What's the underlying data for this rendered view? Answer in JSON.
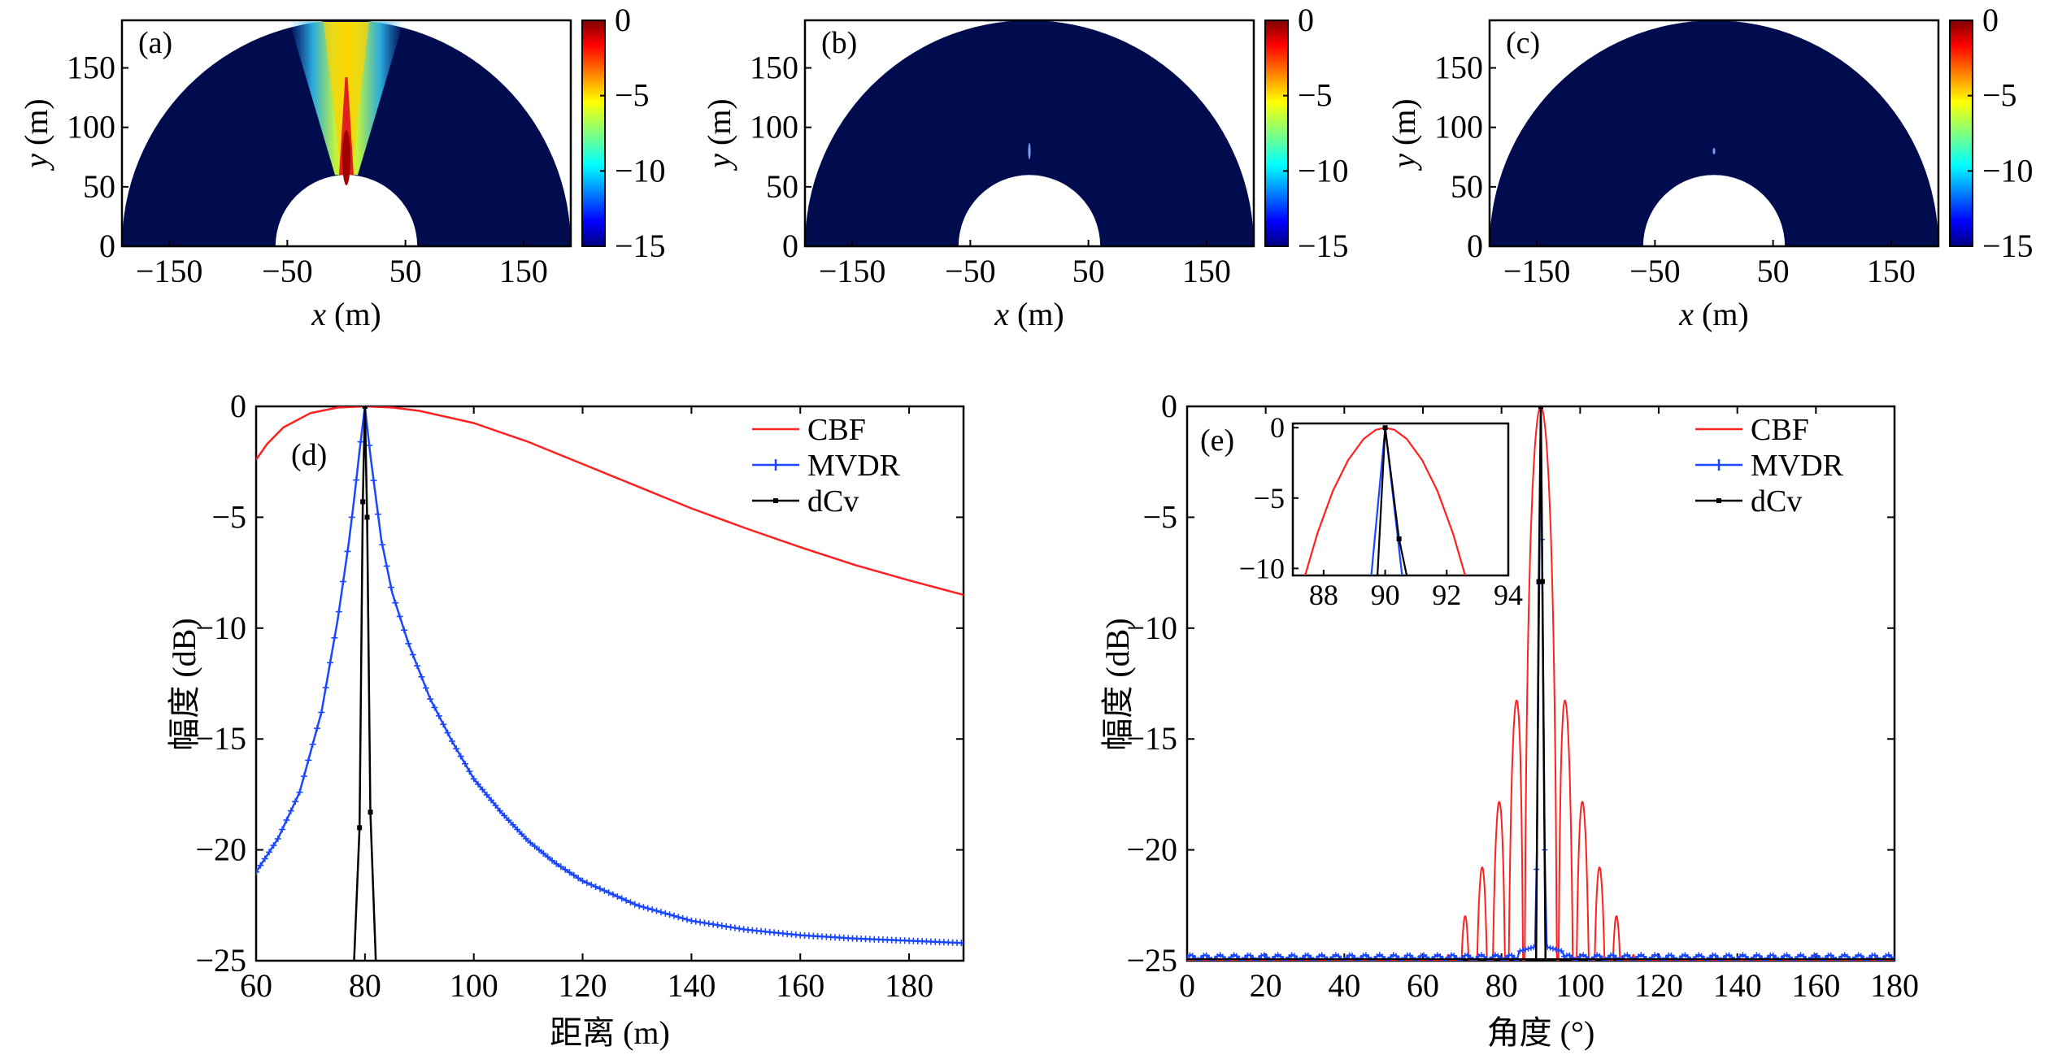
{
  "figure": {
    "colorbar_ticks": [
      "0",
      "−5",
      "−10",
      "−15"
    ],
    "colormap": [
      "#00007f",
      "#0000ff",
      "#007fff",
      "#00ffff",
      "#7fff7f",
      "#ffff00",
      "#ff7f00",
      "#ff0000",
      "#7f0000"
    ],
    "map_background": "#000c4d",
    "series_colors": {
      "CBF": "#ff2020",
      "MVDR": "#1a47ff",
      "dCv": "#000000"
    }
  },
  "chart_data": [
    {
      "panel": "(a)",
      "type": "heatmap",
      "xlabel_var": "x",
      "xlabel_unit": " (m)",
      "ylabel_var": "y",
      "ylabel_unit": " (m)",
      "xticks": [
        "−150",
        "−50",
        "50",
        "150"
      ],
      "yticks": [
        "0",
        "50",
        "100",
        "150"
      ],
      "xlim": [
        -190,
        190
      ],
      "ylim": [
        0,
        190
      ],
      "region": {
        "inner_radius": 60,
        "outer_radius": 190
      },
      "colorbar": {
        "min": -15,
        "max": 0,
        "ticks": [
          "0",
          "−5",
          "−10",
          "−15"
        ]
      },
      "beam": {
        "peak_x": 0,
        "peak_y": 80,
        "main_width_deg": 2,
        "sidelobe_width_deg": 20,
        "sidelobe_level_db": -8
      }
    },
    {
      "panel": "(b)",
      "type": "heatmap",
      "xlabel_var": "x",
      "xlabel_unit": " (m)",
      "ylabel_var": "y",
      "ylabel_unit": " (m)",
      "xticks": [
        "−150",
        "−50",
        "50",
        "150"
      ],
      "yticks": [
        "0",
        "50",
        "100",
        "150"
      ],
      "xlim": [
        -190,
        190
      ],
      "ylim": [
        0,
        190
      ],
      "region": {
        "inner_radius": 60,
        "outer_radius": 190
      },
      "colorbar": {
        "min": -15,
        "max": 0,
        "ticks": [
          "0",
          "−5",
          "−10",
          "−15"
        ]
      },
      "beam": {
        "peak_x": 0,
        "peak_y": 80
      }
    },
    {
      "panel": "(c)",
      "type": "heatmap",
      "xlabel_var": "x",
      "xlabel_unit": " (m)",
      "ylabel_var": "y",
      "ylabel_unit": " (m)",
      "xticks": [
        "−150",
        "−50",
        "50",
        "150"
      ],
      "yticks": [
        "0",
        "50",
        "100",
        "150"
      ],
      "xlim": [
        -190,
        190
      ],
      "ylim": [
        0,
        190
      ],
      "region": {
        "inner_radius": 60,
        "outer_radius": 190
      },
      "colorbar": {
        "min": -15,
        "max": 0,
        "ticks": [
          "0",
          "−5",
          "−10",
          "−15"
        ]
      },
      "beam": {
        "peak_x": 0,
        "peak_y": 80
      }
    },
    {
      "panel": "(d)",
      "type": "line",
      "xlabel": "距离 (m)",
      "ylabel": "幅度 (dB)",
      "xlim": [
        60,
        190
      ],
      "ylim": [
        -25,
        0
      ],
      "xticks": [
        60,
        80,
        100,
        120,
        140,
        160,
        180
      ],
      "yticks": [
        0,
        -5,
        -10,
        -15,
        -20,
        -25
      ],
      "legend": [
        "CBF",
        "MVDR",
        "dCv"
      ],
      "legend_position": "top-right",
      "series": [
        {
          "name": "CBF",
          "color": "#ff2020",
          "marker": "none",
          "x": [
            60,
            62,
            65,
            70,
            75,
            80,
            85,
            90,
            100,
            110,
            120,
            130,
            140,
            150,
            160,
            170,
            180,
            190
          ],
          "y": [
            -2.4,
            -1.7,
            -0.95,
            -0.3,
            -0.05,
            0,
            -0.05,
            -0.2,
            -0.75,
            -1.6,
            -2.6,
            -3.6,
            -4.6,
            -5.5,
            -6.35,
            -7.15,
            -7.85,
            -8.5
          ]
        },
        {
          "name": "MVDR",
          "color": "#1a47ff",
          "marker": "plus",
          "x": [
            60,
            64,
            68,
            72,
            75,
            77,
            78,
            79,
            80,
            81,
            82,
            83,
            85,
            88,
            92,
            96,
            100,
            105,
            110,
            115,
            120,
            130,
            140,
            150,
            160,
            170,
            180,
            190
          ],
          "y": [
            -21,
            -19.5,
            -17.4,
            -13.8,
            -9.6,
            -6.2,
            -4.2,
            -2.0,
            0,
            -2.2,
            -4.1,
            -6.0,
            -8.4,
            -10.7,
            -13.2,
            -15.1,
            -16.8,
            -18.3,
            -19.6,
            -20.6,
            -21.4,
            -22.5,
            -23.2,
            -23.6,
            -23.85,
            -24.0,
            -24.1,
            -24.2
          ]
        },
        {
          "name": "dCv",
          "color": "#000000",
          "marker": "square",
          "x": [
            78,
            79,
            79.6,
            80,
            80.4,
            81,
            82
          ],
          "y": [
            -25,
            -19,
            -4.3,
            0,
            -5,
            -18.3,
            -25
          ]
        }
      ]
    },
    {
      "panel": "(e)",
      "type": "line",
      "xlabel": "角度 (°)",
      "ylabel": "幅度 (dB)",
      "xlim": [
        0,
        180
      ],
      "ylim": [
        -25,
        0
      ],
      "xticks": [
        0,
        20,
        40,
        60,
        80,
        100,
        120,
        140,
        160,
        180
      ],
      "yticks": [
        0,
        -5,
        -10,
        -15,
        -20,
        -25
      ],
      "legend": [
        "CBF",
        "MVDR",
        "dCv"
      ],
      "legend_position": "top-right",
      "series": [
        {
          "name": "CBF",
          "color": "#ff2020",
          "marker": "none",
          "pattern": "sinc",
          "center": 90,
          "null_spacing_deg": 4.3,
          "floor_db": -25
        },
        {
          "name": "MVDR",
          "color": "#1a47ff",
          "marker": "plus",
          "pattern": "narrow-peak",
          "center": 90,
          "floor_db": -24.8
        },
        {
          "name": "dCv",
          "color": "#000000",
          "marker": "square",
          "x": [
            88.8,
            89.5,
            90,
            90.4,
            91.2
          ],
          "y": [
            -25,
            -7.9,
            0,
            -7.9,
            -25
          ]
        }
      ],
      "inset": {
        "xlim": [
          87,
          94
        ],
        "ylim": [
          -10.5,
          0.3
        ],
        "xticks": [
          88,
          90,
          92,
          94
        ],
        "yticks": [
          0,
          -5,
          -10
        ],
        "series": [
          {
            "name": "CBF",
            "x": [
              87.4,
              87.8,
              88.3,
              88.8,
              89.3,
              89.7,
              90,
              90.3,
              90.7,
              91.2,
              91.7,
              92.2,
              92.6
            ],
            "y": [
              -10.5,
              -7.5,
              -4.5,
              -2.3,
              -0.8,
              -0.15,
              0,
              -0.15,
              -0.8,
              -2.3,
              -4.5,
              -7.5,
              -10.5
            ]
          },
          {
            "name": "MVDR",
            "x": [
              89.55,
              90,
              90.55
            ],
            "y": [
              -10.5,
              0,
              -10.5
            ]
          },
          {
            "name": "dCv",
            "x": [
              89.75,
              90,
              90.45,
              90.7
            ],
            "y": [
              -10.5,
              0,
              -7.9,
              -10.5
            ]
          }
        ]
      }
    }
  ]
}
